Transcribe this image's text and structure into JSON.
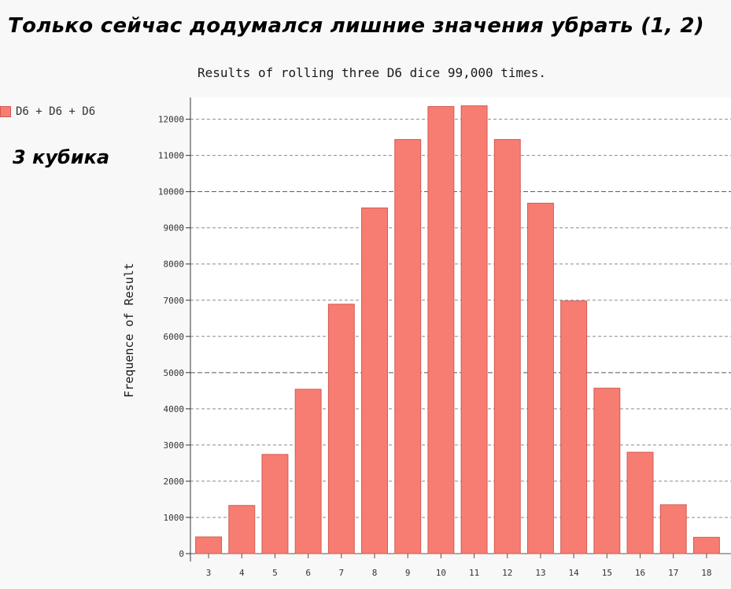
{
  "heading": "Только сейчас додумался лишние значения убрать (1, 2)",
  "caption": "3 кубика",
  "chart_data": {
    "type": "bar",
    "title": "Results of rolling three D6 dice 99,000 times.",
    "xlabel": "",
    "ylabel": "Frequence of Result",
    "categories": [
      "3",
      "4",
      "5",
      "6",
      "7",
      "8",
      "9",
      "10",
      "11",
      "12",
      "13",
      "14",
      "15",
      "16",
      "17",
      "18"
    ],
    "series": [
      {
        "name": "D6 + D6 + D6",
        "values": [
          460,
          1330,
          2740,
          4540,
          6890,
          9550,
          11440,
          12350,
          12370,
          11440,
          9680,
          6980,
          4570,
          2800,
          1350,
          450
        ]
      }
    ],
    "ylim": [
      0,
      12600
    ],
    "yticks": [
      0,
      1000,
      2000,
      3000,
      4000,
      5000,
      6000,
      7000,
      8000,
      9000,
      10000,
      11000,
      12000
    ],
    "grid": true,
    "legend": "top-left",
    "bar_color": "#f77d73",
    "bar_stroke": "#d2594f"
  }
}
